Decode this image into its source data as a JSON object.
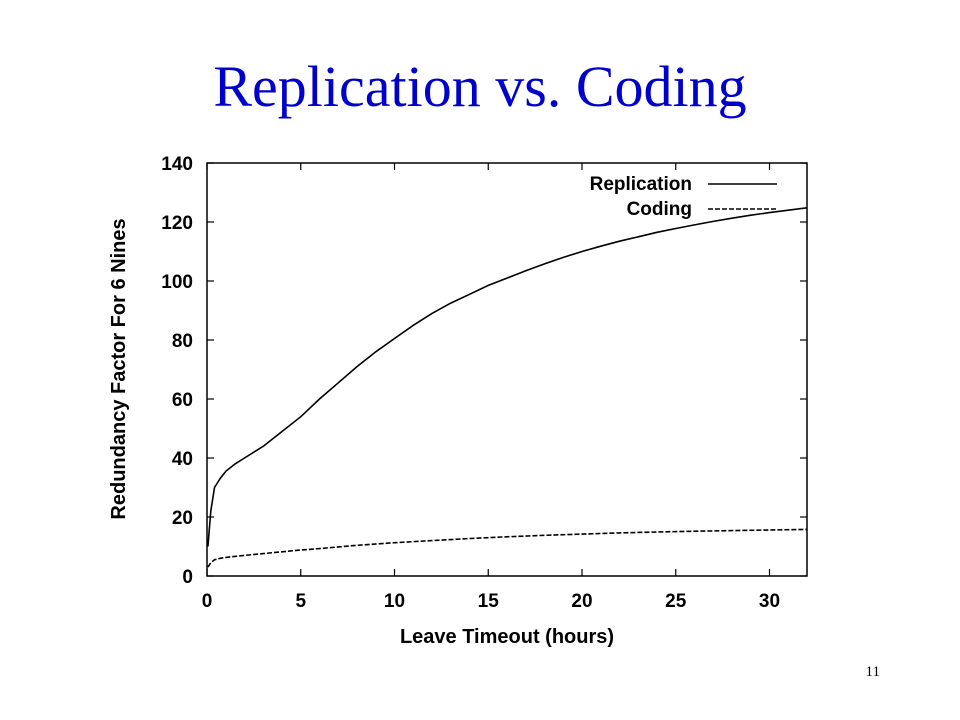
{
  "slide": {
    "title": "Replication vs. Coding",
    "page_number": "11",
    "title_color": "#0000cc"
  },
  "chart_data": {
    "type": "line",
    "xlabel": "Leave Timeout (hours)",
    "ylabel": "Redundancy Factor For 6 Nines",
    "xlim": [
      0,
      32
    ],
    "ylim": [
      0,
      140
    ],
    "x_ticks": [
      0,
      5,
      10,
      15,
      20,
      25,
      30
    ],
    "y_ticks": [
      0,
      20,
      40,
      60,
      80,
      100,
      120,
      140
    ],
    "grid": false,
    "legend_position": "top-right",
    "series": [
      {
        "name": "Replication",
        "style": "solid",
        "color": "#000000",
        "points": [
          [
            0.05,
            10
          ],
          [
            0.2,
            22
          ],
          [
            0.4,
            30
          ],
          [
            0.7,
            33
          ],
          [
            1,
            35.5
          ],
          [
            1.5,
            38
          ],
          [
            2,
            40
          ],
          [
            3,
            44
          ],
          [
            4,
            49
          ],
          [
            5,
            54
          ],
          [
            6,
            60
          ],
          [
            7,
            65.5
          ],
          [
            8,
            71
          ],
          [
            9,
            76
          ],
          [
            10,
            80.5
          ],
          [
            11,
            85
          ],
          [
            12,
            89
          ],
          [
            13,
            92.5
          ],
          [
            14,
            95.5
          ],
          [
            15,
            98.5
          ],
          [
            16,
            101
          ],
          [
            17,
            103.5
          ],
          [
            18,
            105.8
          ],
          [
            19,
            108
          ],
          [
            20,
            110
          ],
          [
            21,
            111.8
          ],
          [
            22,
            113.5
          ],
          [
            23,
            115
          ],
          [
            24,
            116.5
          ],
          [
            25,
            117.8
          ],
          [
            26,
            119
          ],
          [
            27,
            120.2
          ],
          [
            28,
            121.3
          ],
          [
            29,
            122.3
          ],
          [
            30,
            123.2
          ],
          [
            31,
            124
          ],
          [
            32,
            124.8
          ]
        ]
      },
      {
        "name": "Coding",
        "style": "dashed",
        "color": "#000000",
        "points": [
          [
            0.05,
            3
          ],
          [
            0.2,
            4.5
          ],
          [
            0.4,
            5.5
          ],
          [
            0.7,
            6
          ],
          [
            1,
            6.3
          ],
          [
            2,
            7
          ],
          [
            3,
            7.6
          ],
          [
            4,
            8.2
          ],
          [
            5,
            8.8
          ],
          [
            6,
            9.3
          ],
          [
            8,
            10.4
          ],
          [
            10,
            11.3
          ],
          [
            12,
            12
          ],
          [
            14,
            12.7
          ],
          [
            16,
            13.3
          ],
          [
            18,
            13.8
          ],
          [
            20,
            14.2
          ],
          [
            22,
            14.6
          ],
          [
            24,
            14.9
          ],
          [
            26,
            15.2
          ],
          [
            28,
            15.4
          ],
          [
            30,
            15.6
          ],
          [
            32,
            15.8
          ]
        ]
      }
    ]
  }
}
